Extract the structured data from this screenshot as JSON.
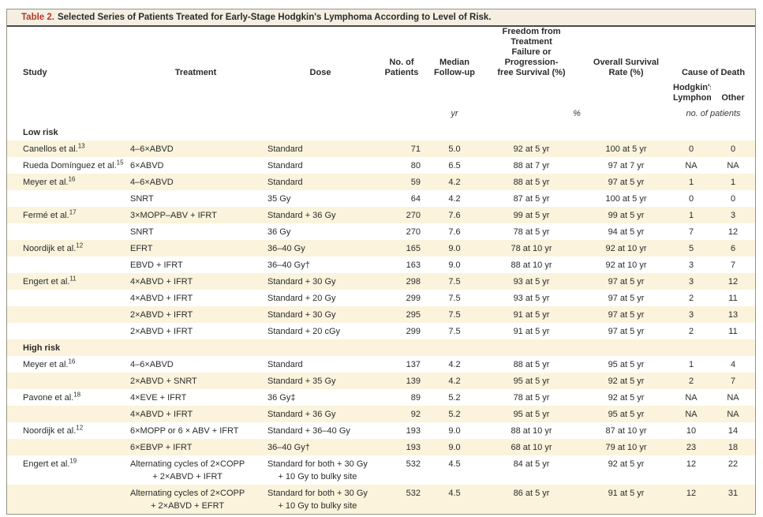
{
  "colors": {
    "accent_red": "#b5382b",
    "title_bar_bg": "#f4efe1",
    "row_shade": "#fbf3dc",
    "rule_dark": "#4a4a4a",
    "border_gray": "#979286"
  },
  "title": {
    "label": "Table 2.",
    "text": "Selected Series of Patients Treated for Early-Stage Hodgkin's Lymphoma According to Level of Risk."
  },
  "header": {
    "study": "Study",
    "treatment": "Treatment",
    "dose": "Dose",
    "patients": "No. of\nPatients",
    "followup": "Median\nFollow-up",
    "fftf": "Freedom from Treatment\nFailure or Progression-\nfree Survival (%)",
    "os": "Overall Survival\nRate (%)",
    "cause": "Cause of Death",
    "cause_sub_hl": "Hodgkin's\nLymphoma",
    "cause_sub_other": "Other",
    "unit_followup": "yr",
    "unit_survival": "%",
    "unit_cause": "no. of patients"
  },
  "table": {
    "rows": [
      {
        "type": "section",
        "label": "Low risk"
      },
      {
        "study": "Canellos et al.",
        "ref": "13",
        "treatment": "4–6×ABVD",
        "dose": "Standard",
        "patients": "71",
        "followup": "5.0",
        "fftf": "92 at 5 yr",
        "os": "100 at 5 yr",
        "hl": "0",
        "other": "0"
      },
      {
        "study": "Rueda Domínguez et al.",
        "ref": "15",
        "treatment": "6×ABVD",
        "dose": "Standard",
        "patients": "80",
        "followup": "6.5",
        "fftf": "88 at 7 yr",
        "os": "97 at 7 yr",
        "hl": "NA",
        "other": "NA"
      },
      {
        "study": "Meyer et al.",
        "ref": "16",
        "treatment": "4–6×ABVD",
        "dose": "Standard",
        "patients": "59",
        "followup": "4.2",
        "fftf": "88 at 5 yr",
        "os": "97 at 5 yr",
        "hl": "1",
        "other": "1"
      },
      {
        "study": "",
        "ref": "",
        "treatment": "SNRT",
        "dose": "35 Gy",
        "patients": "64",
        "followup": "4.2",
        "fftf": "87 at 5 yr",
        "os": "100 at 5 yr",
        "hl": "0",
        "other": "0"
      },
      {
        "study": "Fermé et al.",
        "ref": "17",
        "treatment": "3×MOPP–ABV + IFRT",
        "dose": "Standard + 36 Gy",
        "patients": "270",
        "followup": "7.6",
        "fftf": "99 at 5 yr",
        "os": "99 at 5 yr",
        "hl": "1",
        "other": "3"
      },
      {
        "study": "",
        "ref": "",
        "treatment": "SNRT",
        "dose": "36 Gy",
        "patients": "270",
        "followup": "7.6",
        "fftf": "78 at 5 yr",
        "os": "94 at 5 yr",
        "hl": "7",
        "other": "12"
      },
      {
        "study": "Noordijk et al.",
        "ref": "12",
        "treatment": "EFRT",
        "dose": "36–40 Gy",
        "patients": "165",
        "followup": "9.0",
        "fftf": "78 at 10 yr",
        "os": "92 at 10 yr",
        "hl": "5",
        "other": "6"
      },
      {
        "study": "",
        "ref": "",
        "treatment": "EBVD + IFRT",
        "dose": "36–40 Gy†",
        "patients": "163",
        "followup": "9.0",
        "fftf": "88 at 10 yr",
        "os": "92 at 10 yr",
        "hl": "3",
        "other": "7"
      },
      {
        "study": "Engert et al.",
        "ref": "11",
        "treatment": "4×ABVD + IFRT",
        "dose": "Standard + 30 Gy",
        "patients": "298",
        "followup": "7.5",
        "fftf": "93 at 5 yr",
        "os": "97 at 5 yr",
        "hl": "3",
        "other": "12"
      },
      {
        "study": "",
        "ref": "",
        "treatment": "4×ABVD + IFRT",
        "dose": "Standard + 20 Gy",
        "patients": "299",
        "followup": "7.5",
        "fftf": "93 at 5 yr",
        "os": "97 at 5 yr",
        "hl": "2",
        "other": "11"
      },
      {
        "study": "",
        "ref": "",
        "treatment": "2×ABVD + IFRT",
        "dose": "Standard + 30 Gy",
        "patients": "295",
        "followup": "7.5",
        "fftf": "91 at 5 yr",
        "os": "97 at 5 yr",
        "hl": "3",
        "other": "13"
      },
      {
        "study": "",
        "ref": "",
        "treatment": "2×ABVD + IFRT",
        "dose": "Standard + 20 cGy",
        "patients": "299",
        "followup": "7.5",
        "fftf": "91 at 5 yr",
        "os": "97 at 5 yr",
        "hl": "2",
        "other": "11"
      },
      {
        "type": "section",
        "label": "High risk"
      },
      {
        "study": "Meyer et al.",
        "ref": "16",
        "treatment": "4–6×ABVD",
        "dose": "Standard",
        "patients": "137",
        "followup": "4.2",
        "fftf": "88 at 5 yr",
        "os": "95 at 5 yr",
        "hl": "1",
        "other": "4"
      },
      {
        "study": "",
        "ref": "",
        "treatment": "2×ABVD + SNRT",
        "dose": "Standard + 35 Gy",
        "patients": "139",
        "followup": "4.2",
        "fftf": "95 at 5 yr",
        "os": "92 at 5 yr",
        "hl": "2",
        "other": "7"
      },
      {
        "study": "Pavone et al.",
        "ref": "18",
        "treatment": "4×EVE + IFRT",
        "dose": "36 Gy‡",
        "patients": "89",
        "followup": "5.2",
        "fftf": "78 at 5 yr",
        "os": "92 at 5 yr",
        "hl": "NA",
        "other": "NA"
      },
      {
        "study": "",
        "ref": "",
        "treatment": "4×ABVD + IFRT",
        "dose": "Standard + 36 Gy",
        "patients": "92",
        "followup": "5.2",
        "fftf": "95 at 5 yr",
        "os": "95 at 5 yr",
        "hl": "NA",
        "other": "NA"
      },
      {
        "study": "Noordijk et al.",
        "ref": "12",
        "treatment": "6×MOPP or 6 × ABV + IFRT",
        "dose": "Standard + 36–40 Gy",
        "patients": "193",
        "followup": "9.0",
        "fftf": "88 at 10 yr",
        "os": "87 at 10 yr",
        "hl": "10",
        "other": "14"
      },
      {
        "study": "",
        "ref": "",
        "treatment": "6×EBVP + IFRT",
        "dose": "36–40 Gy†",
        "patients": "193",
        "followup": "9.0",
        "fftf": "68 at 10 yr",
        "os": "79 at 10 yr",
        "hl": "23",
        "other": "18"
      },
      {
        "study": "Engert et al.",
        "ref": "19",
        "treatment": "Alternating cycles of 2×COPP\n+ 2×ABVD + IFRT",
        "dose": "Standard for both + 30 Gy\n+ 10 Gy to bulky site",
        "patients": "532",
        "followup": "4.5",
        "fftf": "84 at 5 yr",
        "os": "92 at 5 yr",
        "hl": "12",
        "other": "22"
      },
      {
        "study": "",
        "ref": "",
        "treatment": "Alternating cycles of 2×COPP\n+ 2×ABVD + EFRT",
        "dose": "Standard for both + 30 Gy\n+ 10 Gy to bulky site",
        "patients": "532",
        "followup": "4.5",
        "fftf": "86 at 5 yr",
        "os": "91 at 5 yr",
        "hl": "12",
        "other": "31"
      }
    ]
  }
}
